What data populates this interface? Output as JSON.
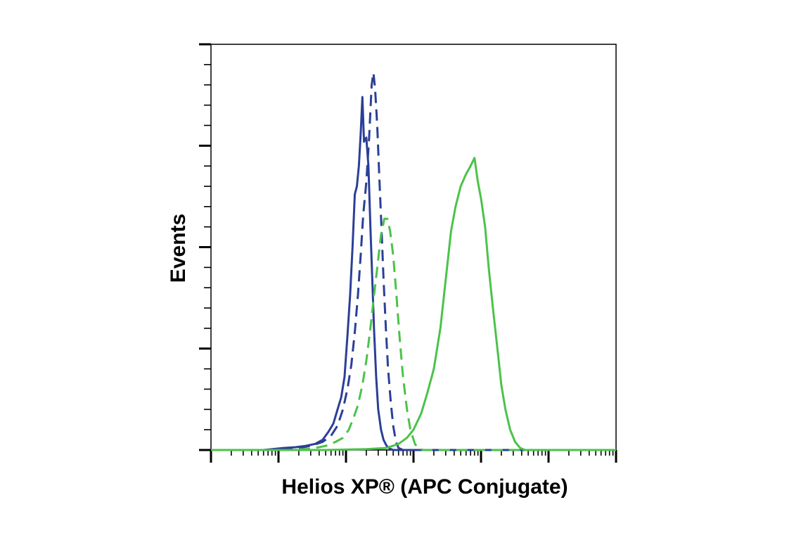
{
  "chart_data": {
    "type": "line",
    "title": "",
    "xlabel": "Helios XP® (APC Conjugate)",
    "ylabel": "Events",
    "x_scale": "log",
    "x_decades": 6,
    "xlim": [
      1,
      1000000
    ],
    "ylim": [
      0,
      100
    ],
    "grid": false,
    "legend": "none",
    "series": [
      {
        "color": "#2b3f97",
        "style": "solid",
        "x": [
          1,
          3,
          6,
          12,
          18,
          25,
          35,
          45,
          55,
          65,
          75,
          85,
          95,
          105,
          115,
          125,
          135,
          145,
          155,
          165,
          175,
          185,
          200,
          215,
          230,
          245,
          260,
          280,
          300,
          330,
          360,
          400,
          450,
          500,
          600,
          800,
          1000,
          10000,
          1000000
        ],
        "y": [
          0,
          0,
          0,
          0.5,
          0.7,
          1,
          1.5,
          2.5,
          4.5,
          6.5,
          10,
          13,
          18,
          28,
          38,
          50,
          63,
          65,
          70,
          78,
          87,
          76,
          77,
          70,
          55,
          42,
          30,
          18,
          10,
          5,
          2.5,
          1,
          0.3,
          0,
          0,
          0,
          0,
          0,
          0
        ]
      },
      {
        "color": "#2b3f97",
        "style": "dashed",
        "x": [
          1,
          10,
          20,
          30,
          45,
          60,
          75,
          90,
          105,
          120,
          135,
          150,
          165,
          180,
          200,
          220,
          240,
          255,
          270,
          290,
          310,
          335,
          360,
          390,
          420,
          460,
          500,
          550,
          600,
          700,
          1000,
          1000000
        ],
        "y": [
          0,
          0,
          0.5,
          1,
          2,
          3.5,
          6,
          10,
          15,
          21,
          29,
          38,
          48,
          58,
          66,
          77,
          90,
          93,
          89,
          80,
          68,
          55,
          42,
          30,
          20,
          12,
          6,
          2,
          0.5,
          0,
          0,
          0
        ]
      },
      {
        "color": "#4cc24a",
        "style": "dashed",
        "x": [
          1,
          15,
          30,
          50,
          70,
          90,
          110,
          130,
          150,
          175,
          200,
          230,
          260,
          300,
          330,
          370,
          410,
          450,
          500,
          560,
          620,
          700,
          800,
          900,
          1050,
          1200,
          1400,
          2000,
          1000000
        ],
        "y": [
          0,
          0,
          0.3,
          1,
          2,
          3,
          5,
          8,
          11,
          16,
          22,
          30,
          38,
          47,
          53,
          57,
          57,
          54,
          48,
          38,
          28,
          18,
          10,
          5,
          1.5,
          0.3,
          0,
          0,
          0
        ]
      },
      {
        "color": "#4cc24a",
        "style": "solid",
        "x": [
          1,
          50,
          200,
          400,
          600,
          800,
          1000,
          1300,
          1600,
          2000,
          2500,
          3000,
          3600,
          4200,
          5000,
          6000,
          7000,
          8000,
          9000,
          10000,
          11500,
          13000,
          15000,
          17500,
          20000,
          23000,
          27000,
          32000,
          38000,
          45000,
          55000,
          70000,
          1000000
        ],
        "y": [
          0,
          0,
          0.2,
          0.5,
          1.5,
          3,
          5,
          9,
          14,
          20,
          30,
          42,
          54,
          60,
          65,
          68,
          70,
          72,
          66,
          62,
          55,
          45,
          35,
          25,
          16,
          10,
          5,
          2,
          0.5,
          0,
          0,
          0,
          0
        ]
      }
    ]
  }
}
